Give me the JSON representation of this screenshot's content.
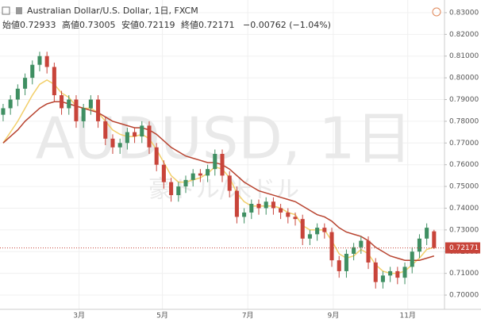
{
  "header": {
    "title": "Australian Dollar/U.S. Dollar, 1日, FXCM",
    "open_label": "始値",
    "high_label": "高値",
    "low_label": "安値",
    "close_label": "終値",
    "change": "−0.00762 (−1.04%)"
  },
  "chart_data": {
    "type": "candlestick",
    "watermark": "AUDUSD, 1日",
    "watermark_sub": "豪ドル/米ドル",
    "up_color": "#3f8f62",
    "down_color": "#c8443a",
    "open": [
      0.783,
      0.786,
      0.79,
      0.795,
      0.8,
      0.806,
      0.81,
      0.805,
      0.792,
      0.786,
      0.79,
      0.78,
      0.786,
      0.79,
      0.78,
      0.772,
      0.768,
      0.77,
      0.775,
      0.773,
      0.778,
      0.768,
      0.76,
      0.752,
      0.746,
      0.75,
      0.753,
      0.756,
      0.755,
      0.758,
      0.765,
      0.755,
      0.748,
      0.736,
      0.738,
      0.742,
      0.74,
      0.743,
      0.74,
      0.738,
      0.736,
      0.735,
      0.726,
      0.728,
      0.731,
      0.729,
      0.716,
      0.711,
      0.719,
      0.722,
      0.725,
      0.715,
      0.706,
      0.709,
      0.711,
      0.708,
      0.713,
      0.72,
      0.726,
      0.72933
    ],
    "high": [
      0.788,
      0.792,
      0.797,
      0.802,
      0.808,
      0.812,
      0.812,
      0.807,
      0.794,
      0.792,
      0.792,
      0.788,
      0.792,
      0.792,
      0.782,
      0.774,
      0.772,
      0.777,
      0.777,
      0.78,
      0.78,
      0.77,
      0.762,
      0.754,
      0.752,
      0.755,
      0.758,
      0.758,
      0.76,
      0.767,
      0.767,
      0.757,
      0.75,
      0.74,
      0.744,
      0.744,
      0.745,
      0.745,
      0.742,
      0.74,
      0.738,
      0.737,
      0.73,
      0.733,
      0.733,
      0.731,
      0.718,
      0.721,
      0.724,
      0.727,
      0.727,
      0.717,
      0.711,
      0.713,
      0.713,
      0.715,
      0.722,
      0.728,
      0.733,
      0.73005
    ],
    "low": [
      0.78,
      0.783,
      0.787,
      0.792,
      0.797,
      0.803,
      0.802,
      0.789,
      0.783,
      0.783,
      0.777,
      0.777,
      0.783,
      0.777,
      0.769,
      0.765,
      0.765,
      0.767,
      0.77,
      0.77,
      0.765,
      0.757,
      0.749,
      0.743,
      0.743,
      0.747,
      0.75,
      0.752,
      0.752,
      0.755,
      0.752,
      0.745,
      0.733,
      0.733,
      0.735,
      0.737,
      0.737,
      0.737,
      0.735,
      0.733,
      0.732,
      0.723,
      0.723,
      0.725,
      0.726,
      0.713,
      0.708,
      0.708,
      0.716,
      0.719,
      0.712,
      0.703,
      0.703,
      0.706,
      0.705,
      0.705,
      0.71,
      0.717,
      0.723,
      0.72119
    ],
    "close": [
      0.786,
      0.79,
      0.795,
      0.8,
      0.806,
      0.81,
      0.805,
      0.792,
      0.786,
      0.79,
      0.78,
      0.786,
      0.79,
      0.78,
      0.772,
      0.768,
      0.77,
      0.775,
      0.773,
      0.778,
      0.768,
      0.76,
      0.752,
      0.746,
      0.75,
      0.753,
      0.756,
      0.755,
      0.758,
      0.765,
      0.755,
      0.748,
      0.736,
      0.738,
      0.742,
      0.74,
      0.743,
      0.74,
      0.738,
      0.736,
      0.735,
      0.726,
      0.728,
      0.731,
      0.729,
      0.716,
      0.711,
      0.719,
      0.722,
      0.725,
      0.715,
      0.706,
      0.709,
      0.711,
      0.708,
      0.713,
      0.72,
      0.726,
      0.731,
      0.72171
    ],
    "series": [
      {
        "color": "#f2cf6a",
        "values": [
          0.77,
          0.775,
          0.78,
          0.786,
          0.792,
          0.797,
          0.799,
          0.797,
          0.793,
          0.791,
          0.787,
          0.786,
          0.786,
          0.784,
          0.78,
          0.776,
          0.774,
          0.773,
          0.773,
          0.774,
          0.772,
          0.767,
          0.761,
          0.755,
          0.752,
          0.752,
          0.753,
          0.754,
          0.756,
          0.759,
          0.758,
          0.754,
          0.747,
          0.743,
          0.741,
          0.741,
          0.741,
          0.741,
          0.74,
          0.738,
          0.737,
          0.732,
          0.73,
          0.73,
          0.73,
          0.725,
          0.719,
          0.717,
          0.718,
          0.721,
          0.719,
          0.714,
          0.711,
          0.71,
          0.71,
          0.711,
          0.714,
          0.717,
          0.721,
          0.722
        ]
      },
      {
        "color": "#b8432f",
        "values": [
          0.77,
          0.773,
          0.776,
          0.78,
          0.783,
          0.786,
          0.788,
          0.789,
          0.789,
          0.788,
          0.787,
          0.786,
          0.785,
          0.784,
          0.782,
          0.78,
          0.779,
          0.778,
          0.777,
          0.777,
          0.776,
          0.774,
          0.771,
          0.768,
          0.766,
          0.764,
          0.763,
          0.762,
          0.761,
          0.761,
          0.76,
          0.758,
          0.755,
          0.752,
          0.75,
          0.748,
          0.747,
          0.746,
          0.745,
          0.744,
          0.743,
          0.741,
          0.739,
          0.737,
          0.736,
          0.734,
          0.731,
          0.729,
          0.728,
          0.727,
          0.725,
          0.722,
          0.72,
          0.718,
          0.717,
          0.716,
          0.716,
          0.716,
          0.717,
          0.718
        ]
      }
    ],
    "xlim": [
      -0.43,
      60.43
    ],
    "xticks": [
      {
        "value": 10.4,
        "label": "3月"
      },
      {
        "value": 21.8,
        "label": "5月"
      },
      {
        "value": 33.5,
        "label": "7月"
      },
      {
        "value": 45.2,
        "label": "9月"
      },
      {
        "value": 55.4,
        "label": "11月"
      }
    ],
    "ylim": [
      0.696,
      0.834
    ],
    "yticks": [
      {
        "value": 0.7,
        "label": "0.70000"
      },
      {
        "value": 0.71,
        "label": "0.71000"
      },
      {
        "value": 0.72,
        "label": "0.72000"
      },
      {
        "value": 0.73,
        "label": "0.73000"
      },
      {
        "value": 0.74,
        "label": "0.74000"
      },
      {
        "value": 0.75,
        "label": "0.75000"
      },
      {
        "value": 0.76,
        "label": "0.76000"
      },
      {
        "value": 0.77,
        "label": "0.77000"
      },
      {
        "value": 0.78,
        "label": "0.78000"
      },
      {
        "value": 0.79,
        "label": "0.79000"
      },
      {
        "value": 0.8,
        "label": "0.80000"
      },
      {
        "value": 0.81,
        "label": "0.81000"
      },
      {
        "value": 0.82,
        "label": "0.82000"
      },
      {
        "value": 0.83,
        "label": "0.83000"
      }
    ],
    "grid": true
  }
}
